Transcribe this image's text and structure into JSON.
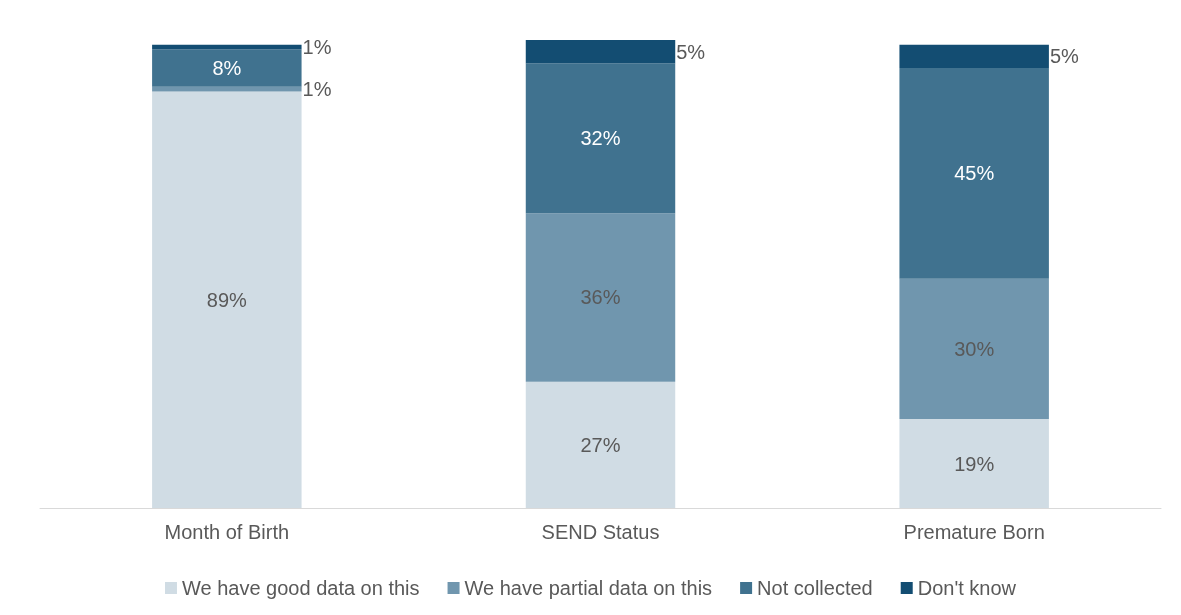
{
  "chart_data": {
    "type": "bar",
    "stacked": true,
    "categories": [
      "Month of Birth",
      "SEND Status",
      "Premature Born"
    ],
    "series": [
      {
        "name": "We have good data on this",
        "color": "#d0dce4",
        "values": [
          89,
          27,
          19
        ],
        "value_labels": [
          "89%",
          "27%",
          "19%"
        ]
      },
      {
        "name": "We have partial data on this",
        "color": "#7096ae",
        "values": [
          1,
          36,
          30
        ],
        "value_labels": [
          "1%",
          "36%",
          "30%"
        ]
      },
      {
        "name": "Not collected",
        "color": "#40728f",
        "values": [
          8,
          32,
          45
        ],
        "value_labels": [
          "8%",
          "32%",
          "45%"
        ]
      },
      {
        "name": "Don't know",
        "color": "#134d72",
        "values": [
          1,
          5,
          5
        ],
        "value_labels": [
          "1%",
          "5%",
          "5%"
        ]
      }
    ],
    "legend": "bottom"
  }
}
